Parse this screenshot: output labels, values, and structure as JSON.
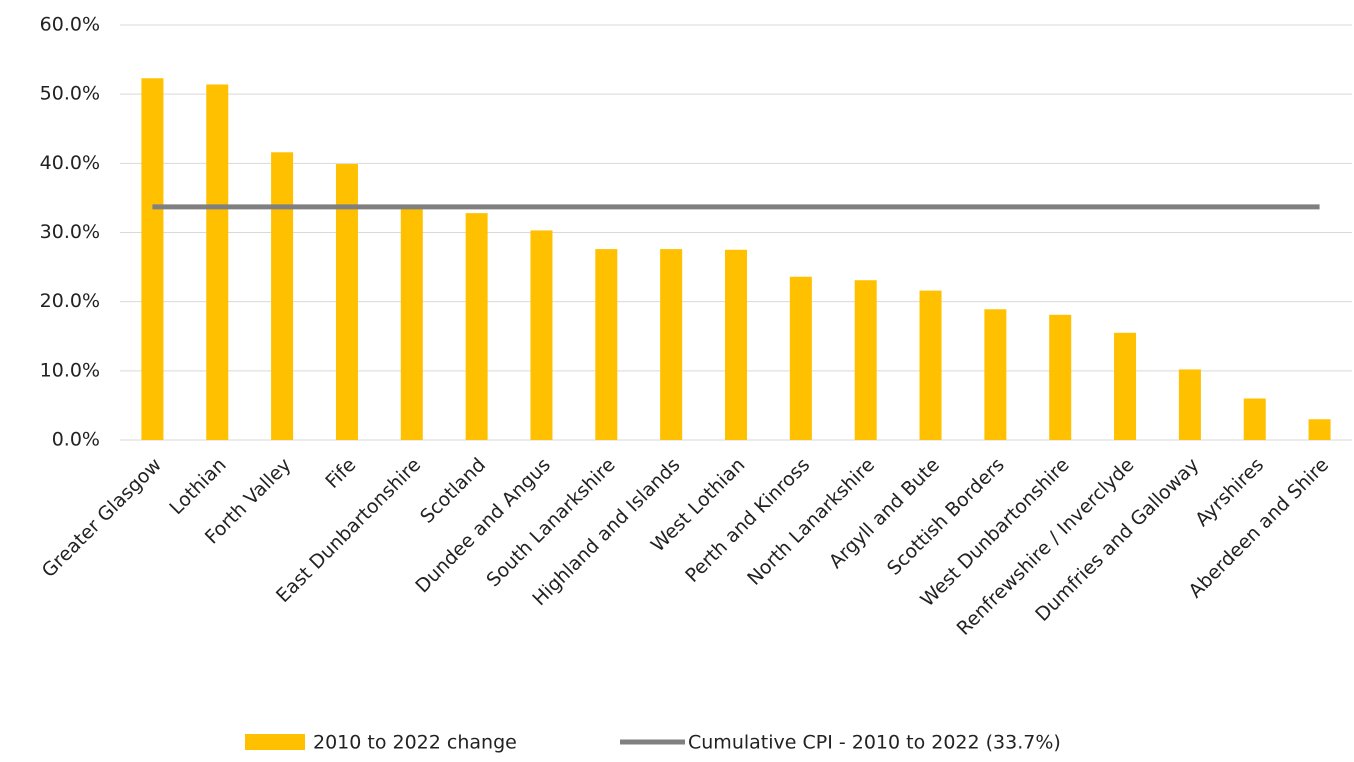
{
  "chart_data": {
    "type": "bar",
    "categories": [
      "Greater Glasgow",
      "Lothian",
      "Forth Valley",
      "Fife",
      "East Dunbartonshire",
      "Scotland",
      "Dundee and Angus",
      "South Lanarkshire",
      "Highland and Islands",
      "West Lothian",
      "Perth and Kinross",
      "North Lanarkshire",
      "Argyll and Bute",
      "Scottish Borders",
      "West Dunbartonshire",
      "Renfrewshire / Inverclyde",
      "Dumfries and Galloway",
      "Ayrshires",
      "Aberdeen and Shire"
    ],
    "series": [
      {
        "name": "2010 to 2022 change",
        "type": "bar",
        "color": "#FFC000",
        "values": [
          52.3,
          51.4,
          41.6,
          39.9,
          33.5,
          32.8,
          30.3,
          27.6,
          27.6,
          27.5,
          23.6,
          23.1,
          21.6,
          18.9,
          18.1,
          15.5,
          10.2,
          6.0,
          3.0
        ]
      },
      {
        "name": "Cumulative CPI - 2010 to 2022 (33.7%)",
        "type": "line",
        "color": "#808080",
        "values": [
          33.7,
          33.7,
          33.7,
          33.7,
          33.7,
          33.7,
          33.7,
          33.7,
          33.7,
          33.7,
          33.7,
          33.7,
          33.7,
          33.7,
          33.7,
          33.7,
          33.7,
          33.7,
          33.7
        ]
      }
    ],
    "ylim": [
      0,
      60
    ],
    "yticks": [
      {
        "value": 0,
        "label": "0.0%"
      },
      {
        "value": 10,
        "label": "10.0%"
      },
      {
        "value": 20,
        "label": "20.0%"
      },
      {
        "value": 30,
        "label": "30.0%"
      },
      {
        "value": 40,
        "label": "40.0%"
      },
      {
        "value": 50,
        "label": "50.0%"
      },
      {
        "value": 60,
        "label": "60.0%"
      }
    ],
    "grid": true,
    "legend": "bottom"
  }
}
